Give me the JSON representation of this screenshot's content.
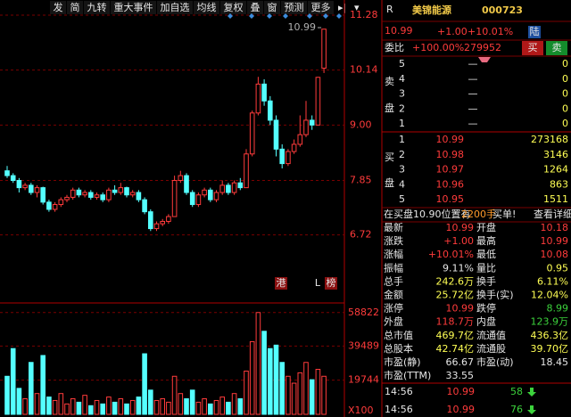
{
  "toolbar": [
    "发",
    "简",
    "九转",
    "重大事件",
    "加自选",
    "均线",
    "复权",
    "叠",
    "窗",
    "预测",
    "更多"
  ],
  "chart": {
    "ylim": [
      5.4,
      11.41
    ],
    "yticks": [
      11.28,
      10.14,
      {
        "value": 9,
        "label": "9.00"
      },
      7.85,
      6.72
    ],
    "kline": [
      [
        8.05,
        7.95,
        8.15,
        7.9
      ],
      [
        7.95,
        7.85,
        8.0,
        7.8
      ],
      [
        7.85,
        7.7,
        7.9,
        7.6
      ],
      [
        7.7,
        7.75,
        7.8,
        7.65
      ],
      [
        7.75,
        7.6,
        7.8,
        7.55
      ],
      [
        7.6,
        7.7,
        7.75,
        7.5
      ],
      [
        7.7,
        7.4,
        7.72,
        7.35
      ],
      [
        7.4,
        7.25,
        7.45,
        7.2
      ],
      [
        7.25,
        7.35,
        7.4,
        7.2
      ],
      [
        7.35,
        7.45,
        7.5,
        7.3
      ],
      [
        7.45,
        7.5,
        7.55,
        7.4
      ],
      [
        7.5,
        7.65,
        7.7,
        7.45
      ],
      [
        7.65,
        7.55,
        7.7,
        7.5
      ],
      [
        7.55,
        7.6,
        7.65,
        7.5
      ],
      [
        7.6,
        7.5,
        7.65,
        7.45
      ],
      [
        7.5,
        7.55,
        7.6,
        7.45
      ],
      [
        7.55,
        7.45,
        7.6,
        7.4
      ],
      [
        7.45,
        7.65,
        7.7,
        7.4
      ],
      [
        7.65,
        7.6,
        7.75,
        7.55
      ],
      [
        7.6,
        7.7,
        7.8,
        7.55
      ],
      [
        7.7,
        7.55,
        7.72,
        7.5
      ],
      [
        7.55,
        7.6,
        7.65,
        7.5
      ],
      [
        7.6,
        7.45,
        7.65,
        7.4
      ],
      [
        7.45,
        7.2,
        7.5,
        7.15
      ],
      [
        7.2,
        6.85,
        7.25,
        6.8
      ],
      [
        6.85,
        6.95,
        7.0,
        6.8
      ],
      [
        6.95,
        7.0,
        7.05,
        6.9
      ],
      [
        7.0,
        7.1,
        7.15,
        6.95
      ],
      [
        7.1,
        7.85,
        7.95,
        7.1
      ],
      [
        7.85,
        7.95,
        8.05,
        7.8
      ],
      [
        7.95,
        7.6,
        8.0,
        7.55
      ],
      [
        7.6,
        7.35,
        7.65,
        7.3
      ],
      [
        7.35,
        7.55,
        7.6,
        7.3
      ],
      [
        7.55,
        7.65,
        7.7,
        7.5
      ],
      [
        7.65,
        7.45,
        7.7,
        7.4
      ],
      [
        7.45,
        7.6,
        7.65,
        7.4
      ],
      [
        7.6,
        7.75,
        7.85,
        7.55
      ],
      [
        7.75,
        7.6,
        7.8,
        7.55
      ],
      [
        7.6,
        7.8,
        7.85,
        7.55
      ],
      [
        7.8,
        7.7,
        7.9,
        7.65
      ],
      [
        7.7,
        8.4,
        8.5,
        7.7
      ],
      [
        8.4,
        9.25,
        9.3,
        8.35
      ],
      [
        9.25,
        9.85,
        10.0,
        9.2
      ],
      [
        9.85,
        9.5,
        9.95,
        9.4
      ],
      [
        9.5,
        9.1,
        9.6,
        9.0
      ],
      [
        9.1,
        8.5,
        9.2,
        8.35
      ],
      [
        8.5,
        8.2,
        8.6,
        8.1
      ],
      [
        8.2,
        8.45,
        8.5,
        8.15
      ],
      [
        8.45,
        8.6,
        8.7,
        8.4
      ],
      [
        8.6,
        8.8,
        9.2,
        8.55
      ],
      [
        8.8,
        9.1,
        9.5,
        8.75
      ],
      [
        9.1,
        9.0,
        9.2,
        8.9
      ],
      [
        9.0,
        9.99,
        10.0,
        9.0
      ],
      [
        10.18,
        10.99,
        10.99,
        10.08
      ]
    ],
    "callout": "10.99",
    "markers": [
      "港",
      "L",
      "榜"
    ],
    "volume": {
      "ylim": [
        0,
        61800
      ],
      "yticks": [
        58822,
        39489,
        19744
      ],
      "unit": "X100",
      "values": [
        22000,
        38000,
        15000,
        9000,
        30000,
        12000,
        34000,
        10000,
        8000,
        12000,
        6000,
        9000,
        7000,
        11000,
        5000,
        8000,
        6000,
        10000,
        7000,
        9000,
        6000,
        8000,
        10000,
        35000,
        14000,
        8000,
        9000,
        7000,
        22000,
        12000,
        9000,
        14000,
        7000,
        9000,
        6000,
        8000,
        10000,
        7000,
        12000,
        9000,
        25000,
        42000,
        58822,
        48000,
        38000,
        40000,
        30000,
        22000,
        18000,
        24000,
        30000,
        20000,
        26000,
        22000
      ]
    }
  },
  "quote": {
    "flag": "R",
    "name": "美锦能源",
    "code": "000723",
    "price": "10.99",
    "change": "+1.00",
    "pct": "+10.01%",
    "tag": "陆"
  },
  "committee": {
    "label": "委比",
    "pct": "+100.00%",
    "diff": "279952",
    "buy": "买",
    "sell": "卖"
  },
  "asks": {
    "side": [
      "卖",
      "盘"
    ],
    "rows": [
      [
        "5",
        "—",
        "0"
      ],
      [
        "4",
        "—",
        "0"
      ],
      [
        "3",
        "—",
        "0"
      ],
      [
        "2",
        "—",
        "0"
      ],
      [
        "1",
        "—",
        "0"
      ]
    ]
  },
  "bids": {
    "side": [
      "买",
      "盘"
    ],
    "rows": [
      [
        "1",
        "10.99",
        "273168"
      ],
      [
        "2",
        "10.98",
        "3146"
      ],
      [
        "3",
        "10.97",
        "1264"
      ],
      [
        "4",
        "10.96",
        "863"
      ],
      [
        "5",
        "10.95",
        "1511"
      ]
    ]
  },
  "notice": {
    "text": "在买盘10.90位置有",
    "qty": "2200手",
    "tail": "买单!",
    "link": "查看详细"
  },
  "stats": [
    [
      "最新",
      "10.99",
      "开盘",
      "10.18"
    ],
    [
      "涨跌",
      "+1.00",
      "最高",
      "10.99"
    ],
    [
      "涨幅",
      "+10.01%",
      "最低",
      "10.08"
    ],
    [
      "振幅",
      "9.11%",
      "量比",
      "0.95"
    ],
    [
      "总手",
      "242.6万",
      "换手",
      "6.11%"
    ],
    [
      "金额",
      "25.72亿",
      "换手(实)",
      "12.04%"
    ],
    [
      "涨停",
      "10.99",
      "跌停",
      "8.99"
    ],
    [
      "外盘",
      "118.7万",
      "内盘",
      "123.9万"
    ],
    [
      "总市值",
      "469.7亿",
      "流通值",
      "436.3亿"
    ],
    [
      "总股本",
      "42.74亿",
      "流通股",
      "39.70亿"
    ],
    [
      "市盈(静)",
      "66.67",
      "市盈(动)",
      "18.45"
    ],
    [
      "市盈(TTM)",
      "33.55"
    ]
  ],
  "trades": [
    [
      "14:56",
      "10.99",
      "58"
    ],
    [
      "14:56",
      "10.99",
      "76"
    ]
  ]
}
